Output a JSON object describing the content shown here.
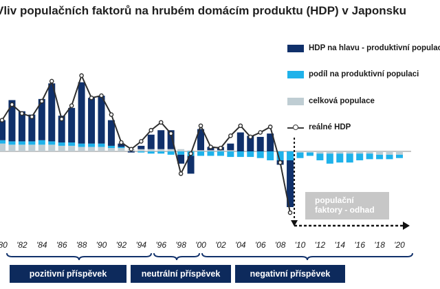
{
  "title": "Vliv populačních faktorů na hrubém domácím produktu (HDP) v Japonsku",
  "colors": {
    "per_capita": "#10306a",
    "workforce_share": "#1fb2ea",
    "population": "#bfcdd3",
    "line": "#2e2e2e",
    "phase_box": "#0d2a5c",
    "estimate_box": "#c7c7c7"
  },
  "legend": [
    {
      "key": "per_capita",
      "label": "HDP na hlavu - produktivní populace",
      "icon": "bar-swatch-dark-blue"
    },
    {
      "key": "workforce_share",
      "label": "podíl na produktivní populaci",
      "icon": "bar-swatch-light-blue"
    },
    {
      "key": "population",
      "label": "celková populace",
      "icon": "bar-swatch-gray"
    },
    {
      "key": "line",
      "label": "reálné HDP",
      "icon": "line-marker"
    }
  ],
  "phases": [
    {
      "label": "pozitivní příspěvek"
    },
    {
      "label": "neutrální příspěvek"
    },
    {
      "label": "negativní příspěvek"
    }
  ],
  "estimate_label": "populační\nfaktory - odhad",
  "chart_data": {
    "type": "bar",
    "stacked": true,
    "x": [
      1980,
      1981,
      1982,
      1983,
      1984,
      1985,
      1986,
      1987,
      1988,
      1989,
      1990,
      1991,
      1992,
      1993,
      1994,
      1995,
      1996,
      1997,
      1998,
      1999,
      2000,
      2001,
      2002,
      2003,
      2004,
      2005,
      2006,
      2007,
      2008,
      2009,
      2010,
      2011,
      2012,
      2013,
      2014,
      2015,
      2016,
      2017,
      2018,
      2019,
      2020
    ],
    "xtick_labels": [
      "'80",
      "'82",
      "'84",
      "'86",
      "'88",
      "'90",
      "'92",
      "'94",
      "'96",
      "'98",
      "'00",
      "'02",
      "'04",
      "'06",
      "'08",
      "'10",
      "'12",
      "'14",
      "'16",
      "'18",
      "'20"
    ],
    "ylim": [
      -6.5,
      8
    ],
    "series": [
      {
        "name": "HDP na hlavu - produktivní populace",
        "key": "per_capita",
        "values": [
          1.8,
          3.7,
          2.7,
          2.4,
          3.7,
          5.2,
          2.4,
          3.1,
          5.5,
          4.1,
          4.3,
          2.3,
          0.3,
          -0.1,
          0.3,
          1.3,
          1.7,
          1.7,
          -0.8,
          -1.6,
          1.9,
          0.3,
          0.3,
          0.6,
          1.7,
          1.4,
          1.3,
          1.6,
          -0.4,
          -4.2,
          null,
          null,
          null,
          null,
          null,
          null,
          null,
          null,
          null,
          null,
          null
        ]
      },
      {
        "name": "podíl na produktivní populaci",
        "key": "workforce_share",
        "values": [
          0.3,
          0.3,
          0.3,
          0.3,
          0.4,
          0.3,
          0.3,
          0.3,
          0.3,
          0.3,
          0.3,
          0.2,
          0.1,
          0.0,
          -0.1,
          -0.2,
          -0.2,
          -0.3,
          -0.3,
          -0.4,
          -0.4,
          -0.4,
          -0.4,
          -0.5,
          -0.5,
          -0.5,
          -0.6,
          -0.8,
          -0.8,
          -0.8,
          -0.5,
          -0.3,
          -0.6,
          -0.9,
          -0.8,
          -0.8,
          -0.6,
          -0.5,
          -0.4,
          -0.4,
          -0.3
        ]
      },
      {
        "name": "celková populace",
        "key": "population",
        "values": [
          0.7,
          0.6,
          0.6,
          0.6,
          0.6,
          0.6,
          0.5,
          0.5,
          0.4,
          0.4,
          0.4,
          0.3,
          0.3,
          0.2,
          0.2,
          0.2,
          0.2,
          0.2,
          0.2,
          0.1,
          0.1,
          0.1,
          0.1,
          0.1,
          0.0,
          0.0,
          0.0,
          0.0,
          0.0,
          0.0,
          -0.1,
          -0.1,
          -0.2,
          -0.2,
          -0.2,
          -0.2,
          -0.2,
          -0.2,
          -0.3,
          -0.3,
          -0.3
        ]
      },
      {
        "name": "reálné HDP",
        "key": "line",
        "type": "line",
        "values": [
          2.8,
          4.2,
          3.4,
          3.1,
          4.5,
          6.3,
          2.9,
          4.1,
          6.8,
          4.8,
          5.0,
          3.3,
          0.8,
          0.2,
          0.9,
          1.9,
          2.6,
          1.6,
          -2.0,
          -0.2,
          2.3,
          0.4,
          0.3,
          1.4,
          2.3,
          1.3,
          1.7,
          2.2,
          -1.0,
          -5.5,
          null,
          null,
          null,
          null,
          null,
          null,
          null,
          null,
          null,
          null,
          null
        ]
      }
    ]
  }
}
